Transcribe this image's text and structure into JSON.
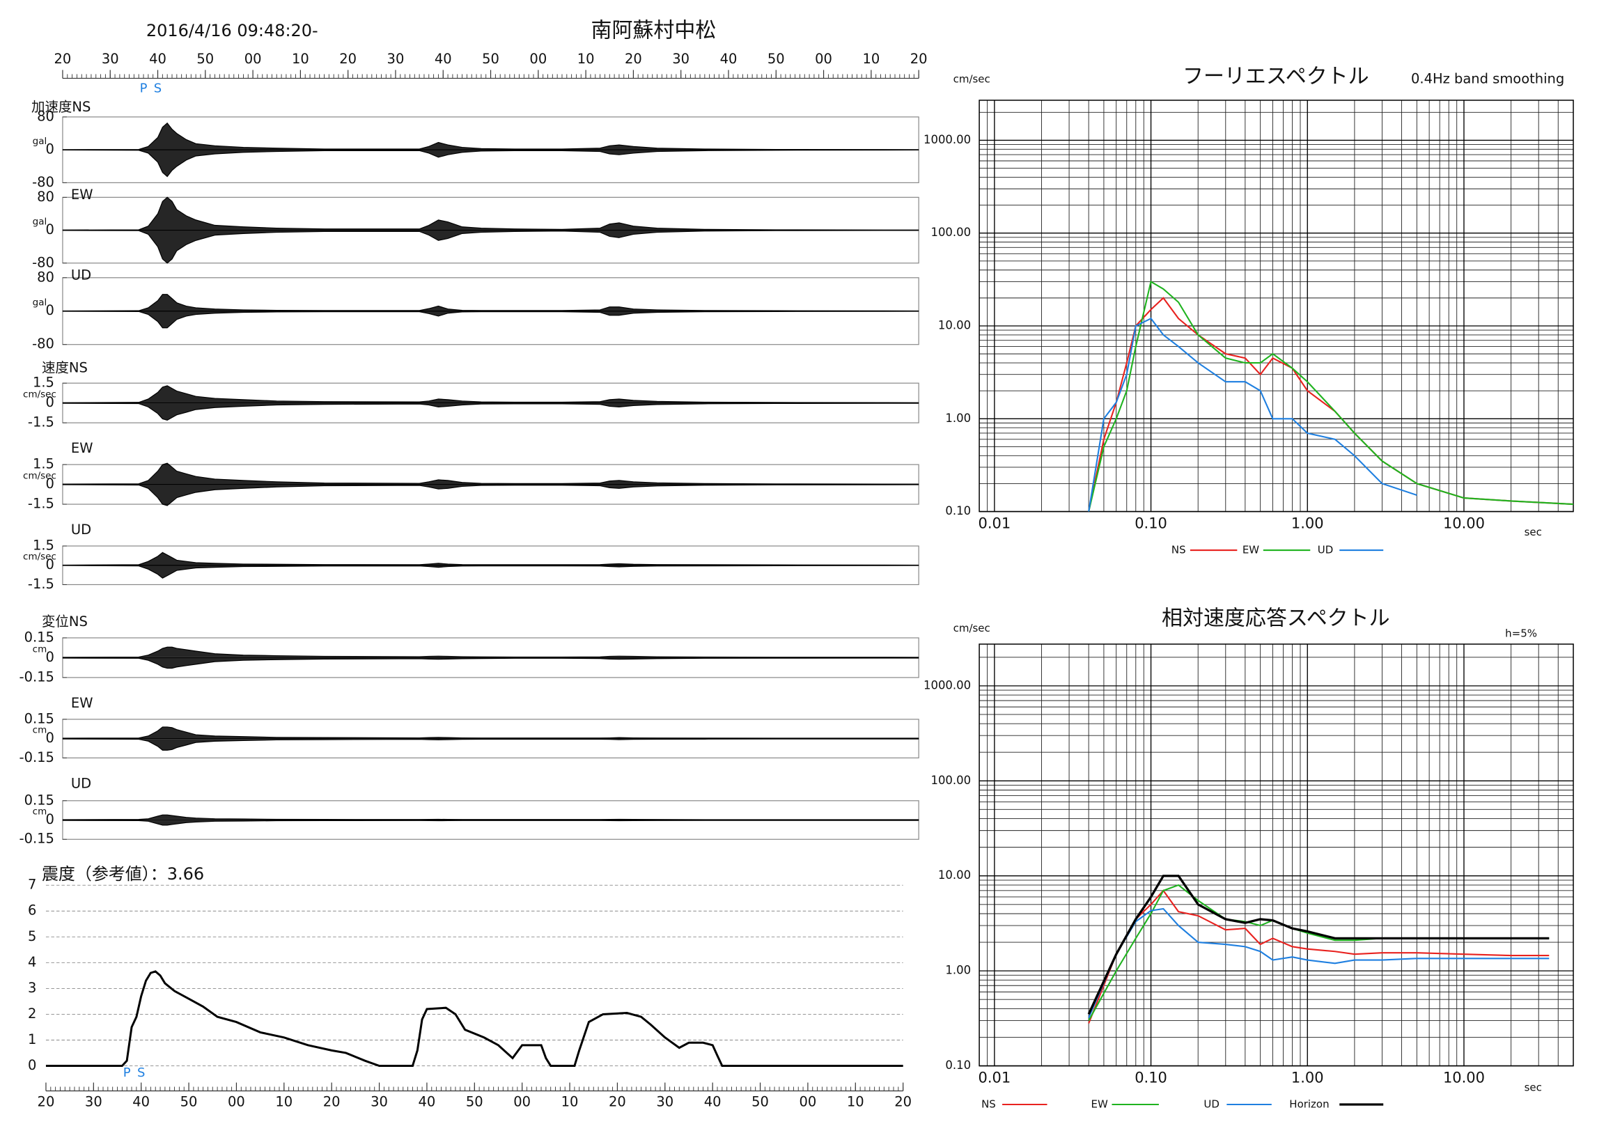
{
  "chart_data": [
    {
      "type": "time-axis",
      "title": "南阿蘇村中松",
      "subtitle": "2016/4/16 09:48:20-",
      "xlim": [
        0,
        180
      ],
      "xticks": [
        {
          "value": 0,
          "label": "20"
        },
        {
          "value": 10,
          "label": "30"
        },
        {
          "value": 20,
          "label": "40"
        },
        {
          "value": 30,
          "label": "50"
        },
        {
          "value": 40,
          "label": "00"
        },
        {
          "value": 50,
          "label": "10"
        },
        {
          "value": 60,
          "label": "20"
        },
        {
          "value": 70,
          "label": "30"
        },
        {
          "value": 80,
          "label": "40"
        },
        {
          "value": 90,
          "label": "50"
        },
        {
          "value": 100,
          "label": "00"
        },
        {
          "value": 110,
          "label": "10"
        },
        {
          "value": 120,
          "label": "20"
        },
        {
          "value": 130,
          "label": "30"
        },
        {
          "value": 140,
          "label": "40"
        },
        {
          "value": 150,
          "label": "50"
        },
        {
          "value": 160,
          "label": "00"
        },
        {
          "value": 170,
          "label": "10"
        },
        {
          "value": 180,
          "label": "20"
        }
      ],
      "markers": [
        {
          "label": "P",
          "x": 17
        },
        {
          "label": "S",
          "x": 20
        }
      ]
    },
    {
      "type": "waveforms",
      "xlim": [
        0,
        180
      ],
      "color": "#000000",
      "x": [
        0,
        16,
        18,
        20,
        21,
        22,
        23,
        24,
        26,
        28,
        32,
        38,
        45,
        55,
        75,
        77,
        79,
        81,
        84,
        88,
        95,
        105,
        113,
        115,
        117,
        120,
        125,
        135,
        150,
        180
      ],
      "panels": [
        {
          "name": "加速度NS",
          "unit": "gal",
          "ylim": [
            -80,
            80
          ],
          "yticks": [
            -80,
            0,
            80
          ],
          "values": [
            0.5,
            1,
            8,
            30,
            55,
            65,
            50,
            40,
            25,
            15,
            10,
            6,
            4,
            2,
            2,
            8,
            18,
            12,
            6,
            3,
            2,
            2,
            4,
            10,
            12,
            8,
            4,
            2,
            1,
            0.5
          ]
        },
        {
          "name": "EW",
          "unit": "gal",
          "ylim": [
            -80,
            80
          ],
          "yticks": [
            -80,
            0,
            80
          ],
          "values": [
            0.5,
            1,
            10,
            40,
            70,
            80,
            70,
            50,
            35,
            25,
            12,
            8,
            5,
            3,
            3,
            12,
            25,
            20,
            8,
            5,
            3,
            2,
            5,
            15,
            18,
            10,
            5,
            2,
            1,
            0.5
          ]
        },
        {
          "name": "UD",
          "unit": "gal",
          "ylim": [
            -80,
            80
          ],
          "yticks": [
            -80,
            0,
            80
          ],
          "values": [
            0.5,
            1,
            8,
            25,
            40,
            40,
            30,
            20,
            12,
            8,
            5,
            3,
            2,
            1.5,
            1.5,
            6,
            12,
            5,
            2,
            1.5,
            1.5,
            1.5,
            3,
            10,
            10,
            5,
            3,
            1.5,
            1,
            0.5
          ]
        },
        {
          "name": "速度NS",
          "unit": "cm/sec",
          "ylim": [
            -1.5,
            1.5
          ],
          "yticks": [
            -1.5,
            0,
            1.5
          ],
          "values": [
            0.02,
            0.05,
            0.3,
            0.8,
            1.2,
            1.3,
            1.1,
            0.9,
            0.7,
            0.5,
            0.35,
            0.25,
            0.15,
            0.1,
            0.08,
            0.15,
            0.3,
            0.25,
            0.15,
            0.08,
            0.06,
            0.06,
            0.1,
            0.25,
            0.3,
            0.2,
            0.12,
            0.06,
            0.04,
            0.02
          ]
        },
        {
          "name": "EW",
          "unit": "cm/sec",
          "ylim": [
            -1.5,
            1.5
          ],
          "yticks": [
            -1.5,
            0,
            1.5
          ],
          "values": [
            0.02,
            0.05,
            0.3,
            1.0,
            1.5,
            1.6,
            1.3,
            1.0,
            0.8,
            0.6,
            0.4,
            0.3,
            0.2,
            0.1,
            0.08,
            0.2,
            0.35,
            0.3,
            0.15,
            0.08,
            0.06,
            0.06,
            0.1,
            0.25,
            0.3,
            0.2,
            0.12,
            0.06,
            0.04,
            0.02
          ]
        },
        {
          "name": "UD",
          "unit": "cm/sec",
          "ylim": [
            -1.5,
            1.5
          ],
          "yticks": [
            -1.5,
            0,
            1.5
          ],
          "values": [
            0.02,
            0.05,
            0.3,
            0.7,
            1.0,
            0.8,
            0.6,
            0.4,
            0.3,
            0.2,
            0.15,
            0.1,
            0.08,
            0.06,
            0.05,
            0.1,
            0.15,
            0.1,
            0.06,
            0.05,
            0.05,
            0.05,
            0.06,
            0.1,
            0.12,
            0.08,
            0.06,
            0.05,
            0.03,
            0.02
          ]
        },
        {
          "name": "変位NS",
          "unit": "cm",
          "ylim": [
            -0.15,
            0.15
          ],
          "yticks": [
            -0.15,
            0,
            0.15
          ],
          "values": [
            0.003,
            0.005,
            0.02,
            0.05,
            0.07,
            0.08,
            0.08,
            0.07,
            0.06,
            0.05,
            0.03,
            0.02,
            0.015,
            0.01,
            0.008,
            0.01,
            0.012,
            0.01,
            0.008,
            0.006,
            0.005,
            0.005,
            0.006,
            0.01,
            0.012,
            0.01,
            0.007,
            0.005,
            0.004,
            0.003
          ]
        },
        {
          "name": "EW",
          "unit": "cm",
          "ylim": [
            -0.15,
            0.15
          ],
          "yticks": [
            -0.15,
            0,
            0.15
          ],
          "values": [
            0.003,
            0.005,
            0.02,
            0.06,
            0.09,
            0.09,
            0.085,
            0.07,
            0.05,
            0.03,
            0.02,
            0.015,
            0.01,
            0.008,
            0.006,
            0.008,
            0.01,
            0.008,
            0.006,
            0.005,
            0.005,
            0.005,
            0.005,
            0.006,
            0.008,
            0.006,
            0.005,
            0.004,
            0.003,
            0.003
          ]
        },
        {
          "name": "UD",
          "unit": "cm",
          "ylim": [
            -0.15,
            0.15
          ],
          "yticks": [
            -0.15,
            0,
            0.15
          ],
          "values": [
            0.003,
            0.005,
            0.01,
            0.03,
            0.04,
            0.04,
            0.035,
            0.03,
            0.02,
            0.015,
            0.01,
            0.008,
            0.006,
            0.005,
            0.004,
            0.005,
            0.006,
            0.005,
            0.004,
            0.004,
            0.004,
            0.004,
            0.004,
            0.005,
            0.006,
            0.005,
            0.004,
            0.003,
            0.003,
            0.003
          ]
        }
      ]
    },
    {
      "type": "line",
      "title": "震度（参考値）：3.66",
      "color": "#000000",
      "grid": true,
      "xlim": [
        0,
        180
      ],
      "ylim": [
        0,
        7
      ],
      "yticks": [
        0,
        1,
        2,
        3,
        4,
        5,
        6,
        7
      ],
      "xticks": [
        {
          "value": 0,
          "label": "20"
        },
        {
          "value": 10,
          "label": "30"
        },
        {
          "value": 20,
          "label": "40"
        },
        {
          "value": 30,
          "label": "50"
        },
        {
          "value": 40,
          "label": "00"
        },
        {
          "value": 50,
          "label": "10"
        },
        {
          "value": 60,
          "label": "20"
        },
        {
          "value": 70,
          "label": "30"
        },
        {
          "value": 80,
          "label": "40"
        },
        {
          "value": 90,
          "label": "50"
        },
        {
          "value": 100,
          "label": "00"
        },
        {
          "value": 110,
          "label": "10"
        },
        {
          "value": 120,
          "label": "20"
        },
        {
          "value": 130,
          "label": "30"
        },
        {
          "value": 140,
          "label": "40"
        },
        {
          "value": 150,
          "label": "50"
        },
        {
          "value": 160,
          "label": "00"
        },
        {
          "value": 170,
          "label": "10"
        },
        {
          "value": 180,
          "label": "20"
        }
      ],
      "markers": [
        {
          "label": "P",
          "x": 17
        },
        {
          "label": "S",
          "x": 20
        }
      ],
      "x": [
        0,
        16,
        17,
        18,
        19,
        20,
        21,
        22,
        23,
        24,
        25,
        27,
        30,
        33,
        36,
        40,
        45,
        50,
        55,
        60,
        63,
        67,
        70,
        77,
        78,
        79,
        80,
        84,
        86,
        88,
        92,
        95,
        98,
        100,
        104,
        105,
        106,
        111,
        112,
        114,
        117,
        122,
        125,
        127,
        130,
        133,
        135,
        138,
        140,
        141,
        142,
        180
      ],
      "values": [
        0,
        0,
        0.2,
        1.5,
        1.9,
        2.7,
        3.3,
        3.6,
        3.66,
        3.5,
        3.2,
        2.9,
        2.6,
        2.3,
        1.9,
        1.7,
        1.3,
        1.1,
        0.8,
        0.6,
        0.5,
        0.2,
        0,
        0,
        0.6,
        1.8,
        2.2,
        2.25,
        2.0,
        1.4,
        1.1,
        0.8,
        0.3,
        0.8,
        0.8,
        0.3,
        0,
        0,
        0.6,
        1.7,
        2.0,
        2.05,
        1.9,
        1.6,
        1.1,
        0.7,
        0.9,
        0.9,
        0.8,
        0.4,
        0,
        0
      ]
    },
    {
      "type": "loglog",
      "title": "フーリエスペクトル",
      "subtitle": "0.4Hz band smoothing",
      "y_label": "cm/sec",
      "x_label": "sec",
      "log_x": true,
      "log_y": true,
      "grid": true,
      "xlim": [
        0.008,
        50
      ],
      "ylim": [
        0.1,
        2700
      ],
      "xticks": [
        {
          "value": 0.01,
          "label": "0.01"
        },
        {
          "value": 0.1,
          "label": "0.10"
        },
        {
          "value": 1,
          "label": "1.00"
        },
        {
          "value": 10,
          "label": "10.00"
        }
      ],
      "yticks": [
        {
          "value": 0.1,
          "label": "0.10"
        },
        {
          "value": 1,
          "label": "1.00"
        },
        {
          "value": 10,
          "label": "10.00"
        },
        {
          "value": 100,
          "label": "100.00"
        },
        {
          "value": 1000,
          "label": "1000.00"
        }
      ],
      "x": [
        0.04,
        0.05,
        0.06,
        0.07,
        0.08,
        0.1,
        0.12,
        0.15,
        0.2,
        0.3,
        0.4,
        0.5,
        0.6,
        0.8,
        1,
        1.5,
        2,
        3,
        5,
        10,
        20,
        50
      ],
      "series": [
        {
          "name": "NS",
          "color": "#e8221f",
          "values": [
            0.1,
            0.6,
            1.5,
            4,
            10,
            15,
            20,
            12,
            8,
            5,
            4.5,
            3,
            4.5,
            3.5,
            2,
            1.2,
            0.7,
            0.35,
            0.2,
            0.14,
            0.13,
            0.12
          ]
        },
        {
          "name": "EW",
          "color": "#1fb31f",
          "values": [
            0.1,
            0.5,
            1,
            2,
            6,
            30,
            25,
            18,
            8,
            4.5,
            4,
            4,
            5,
            3.5,
            2.5,
            1.2,
            0.7,
            0.35,
            0.2,
            0.14,
            0.13,
            0.12
          ]
        },
        {
          "name": "UD",
          "color": "#1e7fe0",
          "values": [
            0.1,
            1,
            1.5,
            3,
            10,
            12,
            8,
            6,
            4,
            2.5,
            2.5,
            2,
            1,
            1,
            0.7,
            0.6,
            0.4,
            0.2,
            0.15,
            null,
            null,
            null
          ]
        }
      ]
    },
    {
      "type": "loglog",
      "title": "相対速度応答スペクトル",
      "annotation": "h=5%",
      "y_label": "cm/sec",
      "x_label": "sec",
      "log_x": true,
      "log_y": true,
      "grid": true,
      "xlim": [
        0.008,
        50
      ],
      "ylim": [
        0.1,
        2750
      ],
      "xticks": [
        {
          "value": 0.01,
          "label": "0.01"
        },
        {
          "value": 0.1,
          "label": "0.10"
        },
        {
          "value": 1,
          "label": "1.00"
        },
        {
          "value": 10,
          "label": "10.00"
        }
      ],
      "yticks": [
        {
          "value": 0.1,
          "label": "0.10"
        },
        {
          "value": 1,
          "label": "1.00"
        },
        {
          "value": 10,
          "label": "10.00"
        },
        {
          "value": 100,
          "label": "100.00"
        },
        {
          "value": 1000,
          "label": "1000.00"
        }
      ],
      "x": [
        0.04,
        0.06,
        0.08,
        0.1,
        0.12,
        0.15,
        0.2,
        0.3,
        0.4,
        0.5,
        0.6,
        0.8,
        1,
        1.5,
        2,
        3,
        5,
        10,
        20,
        35
      ],
      "series": [
        {
          "name": "NS",
          "color": "#e8221f",
          "values": [
            0.28,
            1.5,
            3.5,
            5,
            7,
            4.2,
            3.8,
            2.7,
            2.8,
            1.9,
            2.2,
            1.8,
            1.7,
            1.6,
            1.5,
            1.55,
            1.55,
            1.5,
            1.45,
            1.45
          ]
        },
        {
          "name": "EW",
          "color": "#1fb31f",
          "values": [
            0.3,
            1,
            2.2,
            4,
            7,
            8,
            5.5,
            3.5,
            3.3,
            3,
            3.4,
            2.8,
            2.5,
            2.1,
            2.1,
            2.2,
            2.2,
            2.2,
            2.2,
            2.2
          ]
        },
        {
          "name": "UD",
          "color": "#1e7fe0",
          "values": [
            0.32,
            1.5,
            3.3,
            4.3,
            4.5,
            3,
            2,
            1.9,
            1.8,
            1.6,
            1.3,
            1.4,
            1.3,
            1.2,
            1.3,
            1.3,
            1.35,
            1.35,
            1.35,
            1.35
          ]
        },
        {
          "name": "Horizon",
          "color": "#000000",
          "values": [
            0.35,
            1.5,
            3.5,
            6,
            10,
            10,
            5,
            3.5,
            3.2,
            3.5,
            3.4,
            2.8,
            2.6,
            2.2,
            2.2,
            2.2,
            2.2,
            2.2,
            2.2,
            2.2
          ]
        }
      ]
    }
  ]
}
